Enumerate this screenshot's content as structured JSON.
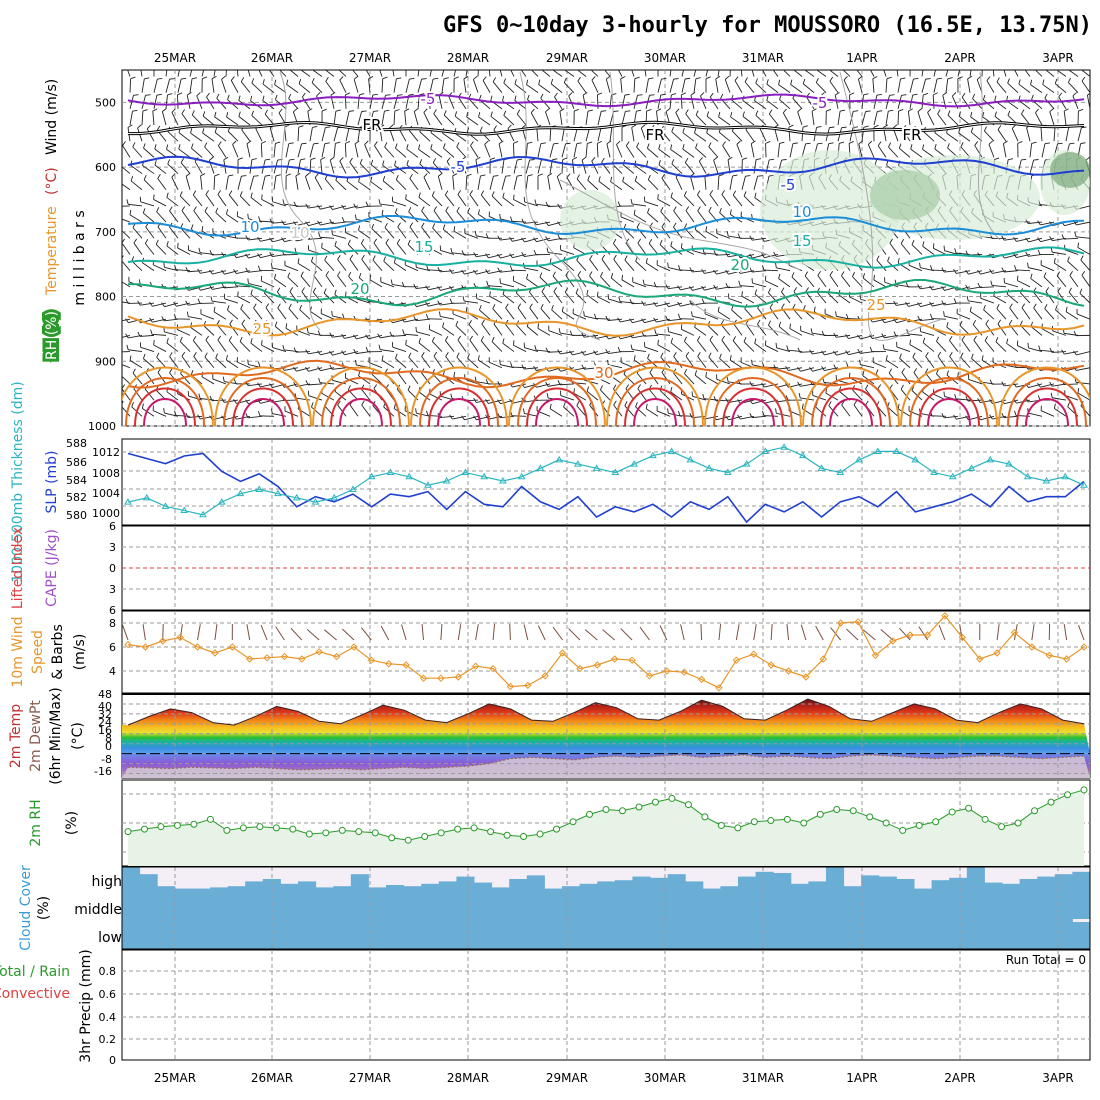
{
  "header": {
    "title": "GFS 0~10day 3-hourly for MOUSSORO (16.5E, 13.75N)"
  },
  "dates": [
    "25MAR",
    "26MAR",
    "27MAR",
    "28MAR",
    "29MAR",
    "30MAR",
    "31MAR",
    "1APR",
    "2APR",
    "3APR"
  ],
  "colors": {
    "sea_level": "#1f3fd0",
    "thickness": "#2ab5c0",
    "wind_speed": "#e8962a",
    "rh": "#2a9a2a",
    "cloud": "#6aaed6",
    "cloud_bg": "#f4eef6",
    "temp_hot": "#c0321e",
    "dew": "#9a6a5a"
  },
  "chart_data": [
    {
      "type": "line",
      "name": "upper-air-panel",
      "title": "Temperature (°C) / Wind (m/s) / RH (%)",
      "ylabel": "m i l l i b a r s",
      "yticks": [
        500,
        600,
        700,
        800,
        900,
        1000
      ],
      "ylim": [
        450,
        1000
      ],
      "contours": [
        {
          "label": "-5",
          "level_mb": 497,
          "color": "#8a1fbf"
        },
        {
          "label": "FR",
          "level_mb": 540,
          "color": "#000000"
        },
        {
          "label": "-5",
          "level_mb": 600,
          "color": "#1f3fd0"
        },
        {
          "label": "10",
          "level_mb": 690,
          "color": "#1a8ed8"
        },
        {
          "label": "15",
          "level_mb": 740,
          "color": "#18b0a0"
        },
        {
          "label": "20",
          "level_mb": 795,
          "color": "#1aa878"
        },
        {
          "label": "25",
          "level_mb": 840,
          "color": "#e8962a"
        },
        {
          "label": "30",
          "level_mb": 920,
          "color": "#e06a20"
        }
      ],
      "contour_labels": [
        "-5",
        "-5",
        "FR",
        "FR",
        "FR",
        "-5",
        "-5",
        "10",
        "10",
        "10",
        "15",
        "15",
        "20",
        "20",
        "25",
        "25",
        "30"
      ]
    },
    {
      "type": "line",
      "name": "thickness-slp-panel",
      "ylabel_left": "1000-500mb Thickness (dm)",
      "ylabel_right": "SLP (mb)",
      "left_ticks": [
        "588",
        "586",
        "584",
        "582",
        "580"
      ],
      "right_ticks": [
        "1012",
        "1008",
        "1004",
        "1000"
      ],
      "series": [
        {
          "name": "SLP (mb)",
          "color": "#1f3fd0",
          "values": [
            1012.5,
            1011.5,
            1010.5,
            1012,
            1012.5,
            1009,
            1007,
            1008.5,
            1006,
            1002,
            1004,
            1003,
            1004.5,
            1002,
            1004.5,
            1004,
            1005,
            1001.5,
            1005,
            1002.5,
            1002,
            1006,
            1003,
            1001.5,
            1004,
            1000,
            1002,
            1001,
            1002.5,
            1000,
            1003,
            1001.5,
            1004,
            999,
            1002.5,
            1001,
            1003,
            1000,
            1003,
            1004,
            1002,
            1005,
            1001,
            1002,
            1003,
            1004.5,
            1002,
            1006,
            1003,
            1004,
            1004,
            1007
          ]
        },
        {
          "name": "1000-500mb Thickness (dm)",
          "color": "#2ab5c0",
          "values": [
            581,
            581.5,
            580.5,
            580,
            579.5,
            581,
            582,
            582.5,
            582,
            581.5,
            581,
            581.5,
            582.5,
            584,
            584.5,
            584,
            583,
            583.5,
            584.5,
            584,
            583.5,
            584,
            585,
            586,
            585.5,
            585,
            584.5,
            585.5,
            586.5,
            587,
            586,
            585,
            584.5,
            585.5,
            587,
            587.5,
            586.5,
            585,
            584.5,
            586,
            587,
            587,
            586,
            584.5,
            584,
            585,
            586,
            585.5,
            584,
            583.5,
            584,
            583
          ]
        }
      ]
    },
    {
      "type": "line",
      "name": "cape-li-panel",
      "ylabel_left": "Lifted Index",
      "ylabel_right": "CAPE (J/kg)",
      "ticks": [
        "6",
        "3",
        "0",
        "3",
        "6"
      ]
    },
    {
      "type": "line",
      "name": "wind-panel",
      "ylabel": "10m Wind Speed & Barbs (m/s)",
      "yticks": [
        "8",
        "6",
        "4"
      ],
      "ylim": [
        2,
        9
      ],
      "series": [
        {
          "name": "10m Wind Speed",
          "color": "#e8962a",
          "values": [
            6.2,
            6.0,
            6.5,
            6.8,
            6.0,
            5.5,
            6.0,
            5.0,
            5.1,
            5.2,
            5.0,
            5.6,
            5.2,
            6.0,
            4.9,
            4.6,
            4.5,
            3.4,
            3.4,
            3.5,
            4.4,
            4.2,
            2.7,
            2.8,
            3.6,
            5.5,
            4.2,
            4.5,
            5.0,
            4.9,
            3.6,
            4.0,
            3.9,
            3.3,
            2.6,
            4.9,
            5.4,
            4.5,
            4.0,
            3.5,
            5.0,
            8.0,
            8.1,
            5.3,
            6.5,
            7.0,
            7.0,
            8.6,
            6.8,
            5.0,
            5.5,
            7.2,
            6.0,
            5.3,
            5.0,
            6.0
          ]
        }
      ]
    },
    {
      "type": "area",
      "name": "temp-panel",
      "ylabel": "2m Temp / 2m DewPt (6hr Min/Max) (°C)",
      "yticks": [
        "48",
        "40",
        "32",
        "24",
        "16",
        "8",
        "0",
        "-8",
        "-16"
      ],
      "ylim": [
        -20,
        48
      ],
      "series": [
        {
          "name": "2m Temp",
          "values": [
            23,
            30,
            36,
            33,
            25,
            23,
            30,
            38,
            34,
            26,
            24,
            31,
            39,
            35,
            27,
            25,
            32,
            40,
            36,
            27,
            26,
            33,
            41,
            37,
            28,
            27,
            34,
            43,
            38,
            28,
            27,
            35,
            44,
            38,
            28,
            26,
            33,
            40,
            36,
            27,
            25,
            33,
            40,
            36,
            27,
            24
          ]
        },
        {
          "name": "2m DewPt",
          "values": [
            -11,
            -11.5,
            -12,
            -11,
            -11.5,
            -12,
            -11,
            -12,
            -13,
            -12.5,
            -12,
            -13,
            -12,
            -11,
            -12,
            -11,
            -10,
            -8,
            -4,
            -3,
            -4,
            -5,
            -3,
            -2,
            -3,
            -2,
            -1,
            -3,
            -2,
            -1,
            -3,
            -2,
            -3,
            -4,
            -2,
            -1,
            -2,
            -3,
            -4,
            -3,
            -2,
            -2,
            -3,
            -4,
            -3,
            -2
          ]
        }
      ]
    },
    {
      "type": "area",
      "name": "rh-panel",
      "ylabel": "2m RH (%)",
      "series": [
        {
          "name": "2m RH",
          "color": "#2a9a2a",
          "values": [
            28,
            30,
            32,
            33,
            34,
            38,
            29,
            31,
            32,
            31,
            30,
            26,
            27,
            29,
            28,
            27,
            23,
            21,
            24,
            27,
            30,
            31,
            28,
            25,
            24,
            26,
            30,
            36,
            42,
            46,
            45,
            48,
            52,
            55,
            50,
            40,
            33,
            31,
            36,
            37,
            38,
            35,
            42,
            46,
            45,
            40,
            35,
            29,
            33,
            36,
            44,
            47,
            38,
            32,
            35,
            45,
            52,
            58,
            62
          ]
        }
      ]
    },
    {
      "type": "bar",
      "name": "cloud-panel",
      "ylabel": "Cloud Cover (%)",
      "levels": [
        "high",
        "middle",
        "low"
      ],
      "series": [
        {
          "name": "high",
          "values": [
            100,
            70,
            20,
            10,
            10,
            15,
            20,
            40,
            50,
            30,
            40,
            15,
            20,
            70,
            15,
            25,
            20,
            30,
            40,
            60,
            35,
            15,
            50,
            65,
            10,
            20,
            30,
            40,
            45,
            60,
            55,
            70,
            40,
            10,
            20,
            60,
            80,
            75,
            30,
            40,
            100,
            20,
            65,
            60,
            50,
            10,
            45,
            55,
            100,
            35,
            30,
            50,
            60,
            70,
            80
          ]
        },
        {
          "name": "middle",
          "values": [
            100,
            100,
            100,
            100,
            100,
            100,
            100,
            100,
            100,
            100,
            100,
            100,
            100,
            100,
            100,
            100,
            100,
            100,
            100,
            100,
            100,
            100,
            100,
            100,
            100,
            100,
            100,
            100,
            100,
            100,
            100,
            100,
            100,
            100,
            100,
            100,
            100,
            100,
            100,
            100,
            100,
            100,
            100,
            100,
            100,
            100,
            100,
            100,
            100,
            100,
            100,
            100,
            100,
            100,
            100
          ]
        },
        {
          "name": "low",
          "values": [
            100,
            100,
            100,
            100,
            100,
            100,
            100,
            100,
            100,
            100,
            100,
            100,
            100,
            100,
            100,
            100,
            100,
            100,
            100,
            100,
            100,
            100,
            100,
            100,
            100,
            100,
            100,
            100,
            100,
            100,
            100,
            100,
            100,
            100,
            100,
            100,
            100,
            100,
            100,
            100,
            100,
            100,
            100,
            100,
            100,
            100,
            100,
            100,
            100,
            100,
            100,
            100,
            100,
            100,
            90
          ]
        }
      ]
    },
    {
      "type": "bar",
      "name": "precip-panel",
      "ylabel": "3hr Precip (mm)",
      "ylabel_left": [
        "Total / Rain",
        "Convective"
      ],
      "yticks": [
        "0.8",
        "0.6",
        "0.4",
        "0.2",
        "0"
      ],
      "ylim": [
        0,
        0.9
      ],
      "annotation": "Run Total = 0",
      "values": []
    }
  ]
}
